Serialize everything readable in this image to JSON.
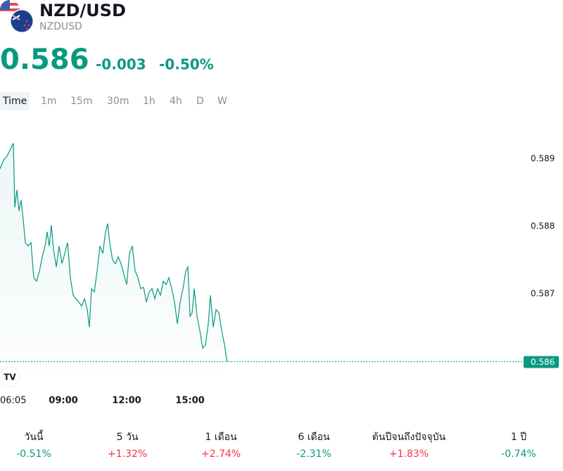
{
  "header": {
    "title": "NZD/USD",
    "symbol": "NZDUSD",
    "price": "0.586",
    "change": "-0.003",
    "change_percent": "-0.50%",
    "color": "#089981"
  },
  "tabs": [
    "Time",
    "1m",
    "15m",
    "30m",
    "1h",
    "4h",
    "D",
    "W"
  ],
  "chart_data": {
    "type": "line",
    "color": "#089981",
    "x": [
      6,
      6.167,
      6.333,
      6.5,
      6.567,
      6.633,
      6.7,
      6.8,
      6.9,
      7,
      7.1,
      7.2,
      7.333,
      7.467,
      7.6,
      7.733,
      7.867,
      8,
      8.133,
      8.233,
      8.333,
      8.433,
      8.533,
      8.667,
      8.8,
      8.933,
      9.067,
      9.2,
      9.333,
      9.467,
      9.6,
      9.733,
      9.867,
      10,
      10.133,
      10.233,
      10.333,
      10.467,
      10.6,
      10.733,
      10.867,
      11,
      11.1,
      11.2,
      11.333,
      11.467,
      11.6,
      11.733,
      11.867,
      12,
      12.133,
      12.267,
      12.4,
      12.533,
      12.667,
      12.8,
      12.933,
      13.067,
      13.2,
      13.333,
      13.467,
      13.6,
      13.733,
      13.867,
      14,
      14.133,
      14.267,
      14.4,
      14.533,
      14.667,
      14.8,
      14.9,
      15,
      15.1,
      15.2,
      15.333,
      15.467,
      15.6,
      15.733,
      15.867,
      15.967,
      16.1,
      16.233,
      16.367,
      16.5,
      16.633,
      16.733,
      16.767
    ],
    "values": [
      0.58885,
      0.58898,
      0.58904,
      0.58914,
      0.58919,
      0.58923,
      0.58828,
      0.58854,
      0.58823,
      0.58839,
      0.5881,
      0.58776,
      0.58771,
      0.58776,
      0.58724,
      0.58719,
      0.58734,
      0.58755,
      0.58771,
      0.58792,
      0.58771,
      0.58802,
      0.58766,
      0.5874,
      0.58771,
      0.58745,
      0.5876,
      0.58776,
      0.58724,
      0.58698,
      0.58693,
      0.58688,
      0.58682,
      0.58693,
      0.58677,
      0.58651,
      0.58708,
      0.58703,
      0.58734,
      0.58771,
      0.5876,
      0.58792,
      0.58804,
      0.58776,
      0.5875,
      0.58745,
      0.58755,
      0.58745,
      0.58729,
      0.58714,
      0.5876,
      0.58771,
      0.58734,
      0.58724,
      0.58708,
      0.5871,
      0.58688,
      0.58703,
      0.58708,
      0.58693,
      0.58708,
      0.58698,
      0.58719,
      0.58714,
      0.58724,
      0.58708,
      0.58688,
      0.58656,
      0.58688,
      0.58708,
      0.58734,
      0.5874,
      0.58667,
      0.58672,
      0.58708,
      0.58667,
      0.58646,
      0.5862,
      0.58625,
      0.58656,
      0.58698,
      0.58651,
      0.58677,
      0.58672,
      0.58646,
      0.58625,
      0.58604,
      0.586
    ],
    "xlim": [
      6,
      30.6
    ],
    "xticks": [
      {
        "value": 6.083,
        "label": "06:05"
      },
      {
        "value": 9,
        "label": "09:00"
      },
      {
        "value": 12,
        "label": "12:00"
      },
      {
        "value": 15,
        "label": "15:00"
      }
    ],
    "ylim": [
      0.58588,
      0.58958
    ],
    "yticks": [
      0.587,
      0.588,
      0.589
    ],
    "current_price": 0.586
  },
  "performance": {
    "up_color": "#f23645",
    "down_color": "#089981",
    "items": [
      {
        "label": "วันนี้",
        "value": "-0.51%"
      },
      {
        "label": "5 วัน",
        "value": "+1.32%"
      },
      {
        "label": "1 เดือน",
        "value": "+2.74%"
      },
      {
        "label": "6 เดือน",
        "value": "-2.31%"
      },
      {
        "label": "ต้นปีจนถึงปัจจุบัน",
        "value": "+1.83%"
      },
      {
        "label": "1 ปี",
        "value": "-0.74%"
      }
    ]
  }
}
